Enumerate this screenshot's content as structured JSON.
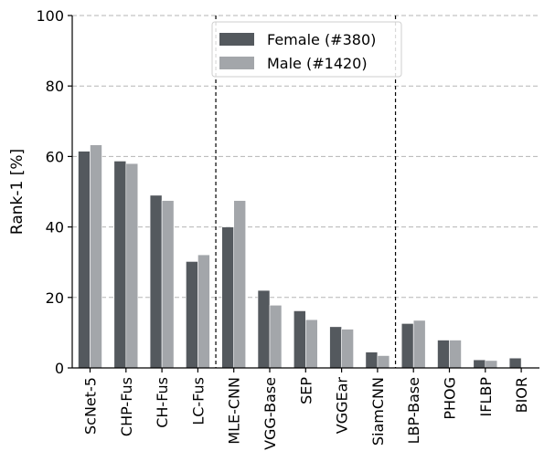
{
  "chart_data": {
    "type": "bar",
    "ylabel": "Rank-1 [%]",
    "xlabel": "",
    "ylim": [
      0,
      100
    ],
    "yticks": [
      0,
      20,
      40,
      60,
      80,
      100
    ],
    "grid": "horizontal dashed",
    "legend_position": "top-center",
    "categories": [
      "ScNet-5",
      "CHP-Fus",
      "CH-Fus",
      "LC-Fus",
      "MLE-CNN",
      "VGG-Base",
      "SEP",
      "VGGEar",
      "SiamCNN",
      "LBP-Base",
      "PHOG",
      "IFLBP",
      "BIOR"
    ],
    "group_separators_after": [
      "LC-Fus",
      "SiamCNN"
    ],
    "series": [
      {
        "name": "Female (#380)",
        "color": "#54595e",
        "values": [
          61.5,
          58.7,
          49.0,
          30.2,
          40.0,
          22.0,
          16.2,
          11.7,
          4.5,
          12.6,
          7.9,
          2.3,
          2.8
        ]
      },
      {
        "name": "Male (#1420)",
        "color": "#a3a6aa",
        "values": [
          63.3,
          58.0,
          47.5,
          32.1,
          47.5,
          17.8,
          13.7,
          11.0,
          3.5,
          13.5,
          7.9,
          2.1,
          0
        ]
      }
    ]
  }
}
